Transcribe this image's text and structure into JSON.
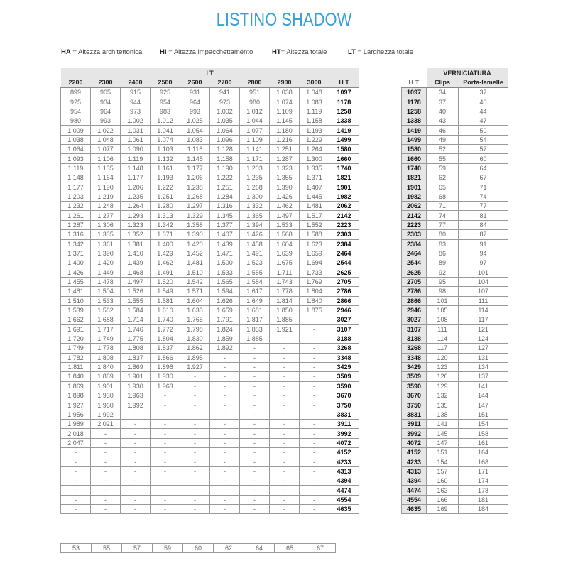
{
  "title": "LISTINO SHADOW",
  "legend": [
    {
      "abbr": "HA",
      "sep": " = ",
      "text": "Altezza architettonica"
    },
    {
      "abbr": "HI",
      "sep": " =  ",
      "text": "Altezza impacchettamento"
    },
    {
      "abbr": "HT",
      "sep": "=  ",
      "text": "Altezza totale"
    },
    {
      "abbr": "LT",
      "sep": " =  ",
      "text": "Larghezza totale"
    }
  ],
  "price_table": {
    "group_header": "LT",
    "columns": [
      "2200",
      "2300",
      "2400",
      "2500",
      "2600",
      "2700",
      "2800",
      "2900",
      "3000",
      "H T"
    ],
    "rows": [
      [
        "899",
        "905",
        "915",
        "925",
        "931",
        "941",
        "951",
        "1.038",
        "1.048",
        "1097"
      ],
      [
        "925",
        "934",
        "944",
        "954",
        "964",
        "973",
        "980",
        "1.074",
        "1.083",
        "1178"
      ],
      [
        "954",
        "964",
        "973",
        "983",
        "993",
        "1.002",
        "1.012",
        "1.109",
        "1.119",
        "1258"
      ],
      [
        "980",
        "993",
        "1.002",
        "1.012",
        "1.025",
        "1.035",
        "1.044",
        "1.145",
        "1.158",
        "1338"
      ],
      [
        "1.009",
        "1.022",
        "1.031",
        "1.041",
        "1.054",
        "1.064",
        "1.077",
        "1.180",
        "1.193",
        "1419"
      ],
      [
        "1.038",
        "1.048",
        "1.061",
        "1.074",
        "1.083",
        "1.096",
        "1.109",
        "1.216",
        "1.229",
        "1499"
      ],
      [
        "1.064",
        "1.077",
        "1.090",
        "1.103",
        "1.116",
        "1.128",
        "1.141",
        "1.251",
        "1.264",
        "1580"
      ],
      [
        "1.093",
        "1.106",
        "1.119",
        "1.132",
        "1.145",
        "1.158",
        "1.171",
        "1.287",
        "1.300",
        "1660"
      ],
      [
        "1.119",
        "1.135",
        "1.148",
        "1.161",
        "1.177",
        "1.190",
        "1.203",
        "1.323",
        "1.335",
        "1740"
      ],
      [
        "1.148",
        "1.164",
        "1.177",
        "1.193",
        "1.206",
        "1.222",
        "1.235",
        "1.355",
        "1.371",
        "1821"
      ],
      [
        "1.177",
        "1.190",
        "1.206",
        "1.222",
        "1.238",
        "1.251",
        "1.268",
        "1.390",
        "1.407",
        "1901"
      ],
      [
        "1.203",
        "1.219",
        "1.235",
        "1.251",
        "1.268",
        "1.284",
        "1.300",
        "1.426",
        "1.445",
        "1982"
      ],
      [
        "1.232",
        "1.248",
        "1.264",
        "1.280",
        "1.297",
        "1.316",
        "1.332",
        "1.462",
        "1.481",
        "2062"
      ],
      [
        "1.261",
        "1.277",
        "1.293",
        "1.313",
        "1.329",
        "1.345",
        "1.365",
        "1.497",
        "1.517",
        "2142"
      ],
      [
        "1.287",
        "1.306",
        "1.323",
        "1.342",
        "1.358",
        "1.377",
        "1.394",
        "1.533",
        "1.552",
        "2223"
      ],
      [
        "1.316",
        "1.335",
        "1.352",
        "1.371",
        "1.390",
        "1.407",
        "1.426",
        "1.568",
        "1.588",
        "2303"
      ],
      [
        "1.342",
        "1.361",
        "1.381",
        "1.400",
        "1.420",
        "1.439",
        "1.458",
        "1.604",
        "1.623",
        "2384"
      ],
      [
        "1.371",
        "1.390",
        "1.410",
        "1.429",
        "1.452",
        "1.471",
        "1.491",
        "1.639",
        "1.659",
        "2464"
      ],
      [
        "1.400",
        "1.420",
        "1.439",
        "1.462",
        "1.481",
        "1.500",
        "1.523",
        "1.675",
        "1.694",
        "2544"
      ],
      [
        "1.426",
        "1.449",
        "1.468",
        "1.491",
        "1.510",
        "1.533",
        "1.555",
        "1.711",
        "1.733",
        "2625"
      ],
      [
        "1.455",
        "1.478",
        "1.497",
        "1.520",
        "1.542",
        "1.565",
        "1.584",
        "1.743",
        "1.769",
        "2705"
      ],
      [
        "1.481",
        "1.504",
        "1.526",
        "1.549",
        "1.571",
        "1.594",
        "1.617",
        "1.778",
        "1.804",
        "2786"
      ],
      [
        "1.510",
        "1.533",
        "1.555",
        "1.581",
        "1.604",
        "1.626",
        "1.649",
        "1.814",
        "1.840",
        "2866"
      ],
      [
        "1.539",
        "1.562",
        "1.584",
        "1.610",
        "1.633",
        "1.659",
        "1.681",
        "1.850",
        "1.875",
        "2946"
      ],
      [
        "1.662",
        "1.688",
        "1.714",
        "1.740",
        "1.765",
        "1.791",
        "1.817",
        "1.885",
        "-",
        "3027"
      ],
      [
        "1.691",
        "1.717",
        "1.746",
        "1.772",
        "1.798",
        "1.824",
        "1.853",
        "1.921",
        "-",
        "3107"
      ],
      [
        "1.720",
        "1.749",
        "1.775",
        "1.804",
        "1.830",
        "1.859",
        "1.885",
        "-",
        "-",
        "3188"
      ],
      [
        "1.749",
        "1.778",
        "1.808",
        "1.837",
        "1.862",
        "1.892",
        "-",
        "-",
        "-",
        "3268"
      ],
      [
        "1.782",
        "1.808",
        "1.837",
        "1.866",
        "1.895",
        "-",
        "-",
        "-",
        "-",
        "3348"
      ],
      [
        "1.811",
        "1.840",
        "1.869",
        "1.898",
        "1.927",
        "-",
        "-",
        "-",
        "-",
        "3429"
      ],
      [
        "1.840",
        "1.869",
        "1.901",
        "1.930",
        "-",
        "-",
        "-",
        "-",
        "-",
        "3509"
      ],
      [
        "1.869",
        "1.901",
        "1.930",
        "1.963",
        "-",
        "-",
        "-",
        "-",
        "-",
        "3590"
      ],
      [
        "1.898",
        "1.930",
        "1.963",
        "-",
        "-",
        "-",
        "-",
        "-",
        "-",
        "3670"
      ],
      [
        "1.927",
        "1.960",
        "1.992",
        "-",
        "-",
        "-",
        "-",
        "-",
        "-",
        "3750"
      ],
      [
        "1.956",
        "1.992",
        "-",
        "-",
        "-",
        "-",
        "-",
        "-",
        "-",
        "3831"
      ],
      [
        "1.989",
        "2.021",
        "-",
        "-",
        "-",
        "-",
        "-",
        "-",
        "-",
        "3911"
      ],
      [
        "2.018",
        "-",
        "-",
        "-",
        "-",
        "-",
        "-",
        "-",
        "-",
        "3992"
      ],
      [
        "2.047",
        "-",
        "-",
        "-",
        "-",
        "-",
        "-",
        "-",
        "-",
        "4072"
      ],
      [
        "-",
        "-",
        "-",
        "-",
        "-",
        "-",
        "-",
        "-",
        "-",
        "4152"
      ],
      [
        "-",
        "-",
        "-",
        "-",
        "-",
        "-",
        "-",
        "-",
        "-",
        "4233"
      ],
      [
        "-",
        "-",
        "-",
        "-",
        "-",
        "-",
        "-",
        "-",
        "-",
        "4313"
      ],
      [
        "-",
        "-",
        "-",
        "-",
        "-",
        "-",
        "-",
        "-",
        "-",
        "4394"
      ],
      [
        "-",
        "-",
        "-",
        "-",
        "-",
        "-",
        "-",
        "-",
        "-",
        "4474"
      ],
      [
        "-",
        "-",
        "-",
        "-",
        "-",
        "-",
        "-",
        "-",
        "-",
        "4554"
      ],
      [
        "-",
        "-",
        "-",
        "-",
        "-",
        "-",
        "-",
        "-",
        "-",
        "4635"
      ]
    ]
  },
  "paint_table": {
    "group_header": "VERNICIATURA",
    "columns": [
      "H T",
      "Clips",
      "Porta-lamelle"
    ],
    "rows": [
      [
        "1097",
        "34",
        "37"
      ],
      [
        "1178",
        "37",
        "40"
      ],
      [
        "1258",
        "40",
        "44"
      ],
      [
        "1338",
        "43",
        "47"
      ],
      [
        "1419",
        "46",
        "50"
      ],
      [
        "1499",
        "49",
        "54"
      ],
      [
        "1580",
        "52",
        "57"
      ],
      [
        "1660",
        "55",
        "60"
      ],
      [
        "1740",
        "59",
        "64"
      ],
      [
        "1821",
        "62",
        "67"
      ],
      [
        "1901",
        "65",
        "71"
      ],
      [
        "1982",
        "68",
        "74"
      ],
      [
        "2062",
        "71",
        "77"
      ],
      [
        "2142",
        "74",
        "81"
      ],
      [
        "2223",
        "77",
        "84"
      ],
      [
        "2303",
        "80",
        "87"
      ],
      [
        "2384",
        "83",
        "91"
      ],
      [
        "2464",
        "86",
        "94"
      ],
      [
        "2544",
        "89",
        "97"
      ],
      [
        "2625",
        "92",
        "101"
      ],
      [
        "2705",
        "95",
        "104"
      ],
      [
        "2786",
        "98",
        "107"
      ],
      [
        "2866",
        "101",
        "111"
      ],
      [
        "2946",
        "105",
        "114"
      ],
      [
        "3027",
        "108",
        "117"
      ],
      [
        "3107",
        "111",
        "121"
      ],
      [
        "3188",
        "114",
        "124"
      ],
      [
        "3268",
        "117",
        "127"
      ],
      [
        "3348",
        "120",
        "131"
      ],
      [
        "3429",
        "123",
        "134"
      ],
      [
        "3509",
        "126",
        "137"
      ],
      [
        "3590",
        "129",
        "141"
      ],
      [
        "3670",
        "132",
        "144"
      ],
      [
        "3750",
        "135",
        "147"
      ],
      [
        "3831",
        "138",
        "151"
      ],
      [
        "3911",
        "141",
        "154"
      ],
      [
        "3992",
        "145",
        "158"
      ],
      [
        "4072",
        "147",
        "161"
      ],
      [
        "4152",
        "151",
        "164"
      ],
      [
        "4233",
        "154",
        "168"
      ],
      [
        "4313",
        "157",
        "171"
      ],
      [
        "4394",
        "160",
        "174"
      ],
      [
        "4474",
        "163",
        "178"
      ],
      [
        "4554",
        "166",
        "181"
      ],
      [
        "4635",
        "169",
        "184"
      ]
    ]
  },
  "bottom_row": [
    "53",
    "55",
    "57",
    "59",
    "60",
    "62",
    "64",
    "65",
    "67"
  ],
  "colors": {
    "title": "#3aa0d8",
    "header_bg": "#e6e6e6"
  }
}
